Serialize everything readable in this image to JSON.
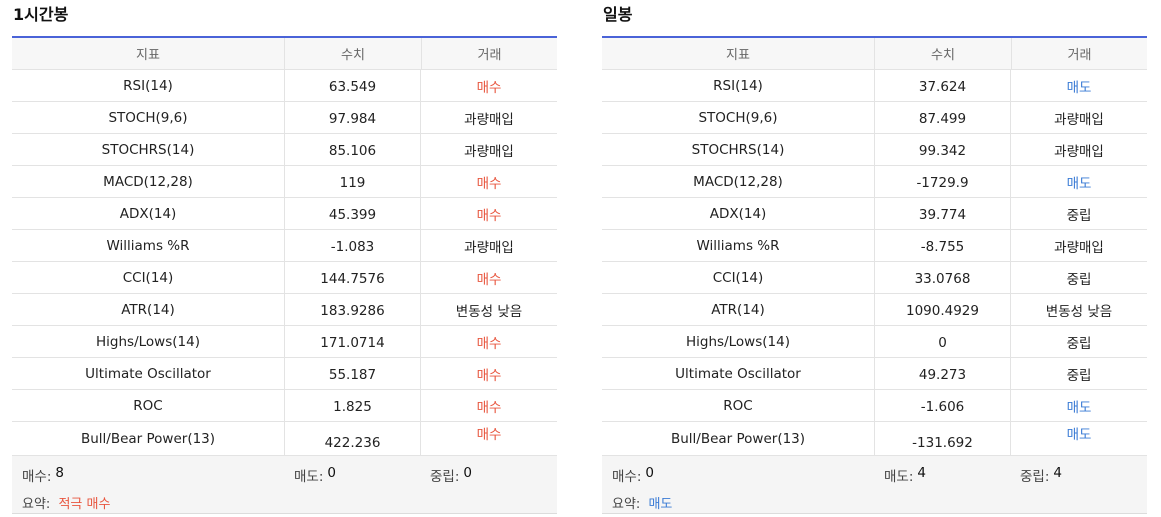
{
  "headers": {
    "indicator": "지표",
    "value": "수치",
    "action": "거래"
  },
  "panels": [
    {
      "title": "1시간봉",
      "rows": [
        {
          "name": "RSI(14)",
          "value": "63.549",
          "action": "매수",
          "type": "buy"
        },
        {
          "name": "STOCH(9,6)",
          "value": "97.984",
          "action": "과량매입",
          "type": "neutral"
        },
        {
          "name": "STOCHRS(14)",
          "value": "85.106",
          "action": "과량매입",
          "type": "neutral"
        },
        {
          "name": "MACD(12,28)",
          "value": "119",
          "action": "매수",
          "type": "buy"
        },
        {
          "name": "ADX(14)",
          "value": "45.399",
          "action": "매수",
          "type": "buy"
        },
        {
          "name": "Williams %R",
          "value": "-1.083",
          "action": "과량매입",
          "type": "neutral"
        },
        {
          "name": "CCI(14)",
          "value": "144.7576",
          "action": "매수",
          "type": "buy"
        },
        {
          "name": "ATR(14)",
          "value": "183.9286",
          "action": "변동성 낮음",
          "type": "neutral"
        },
        {
          "name": "Highs/Lows(14)",
          "value": "171.0714",
          "action": "매수",
          "type": "buy"
        },
        {
          "name": "Ultimate Oscillator",
          "value": "55.187",
          "action": "매수",
          "type": "buy"
        },
        {
          "name": "ROC",
          "value": "1.825",
          "action": "매수",
          "type": "buy"
        },
        {
          "name": "Bull/Bear Power(13)",
          "value": "422.236",
          "action": "매수",
          "type": "buy"
        }
      ],
      "summary": {
        "buy_label": "매수:",
        "buy_count": "8",
        "sell_label": "매도:",
        "sell_count": "0",
        "neutral_label": "중립:",
        "neutral_count": "0",
        "overall_label": "요약:",
        "overall_value": "적극 매수",
        "overall_type": "buy"
      }
    },
    {
      "title": "일봉",
      "rows": [
        {
          "name": "RSI(14)",
          "value": "37.624",
          "action": "매도",
          "type": "sell"
        },
        {
          "name": "STOCH(9,6)",
          "value": "87.499",
          "action": "과량매입",
          "type": "neutral"
        },
        {
          "name": "STOCHRS(14)",
          "value": "99.342",
          "action": "과량매입",
          "type": "neutral"
        },
        {
          "name": "MACD(12,28)",
          "value": "-1729.9",
          "action": "매도",
          "type": "sell"
        },
        {
          "name": "ADX(14)",
          "value": "39.774",
          "action": "중립",
          "type": "neutral"
        },
        {
          "name": "Williams %R",
          "value": "-8.755",
          "action": "과량매입",
          "type": "neutral"
        },
        {
          "name": "CCI(14)",
          "value": "33.0768",
          "action": "중립",
          "type": "neutral"
        },
        {
          "name": "ATR(14)",
          "value": "1090.4929",
          "action": "변동성 낮음",
          "type": "neutral"
        },
        {
          "name": "Highs/Lows(14)",
          "value": "0",
          "action": "중립",
          "type": "neutral"
        },
        {
          "name": "Ultimate Oscillator",
          "value": "49.273",
          "action": "중립",
          "type": "neutral"
        },
        {
          "name": "ROC",
          "value": "-1.606",
          "action": "매도",
          "type": "sell"
        },
        {
          "name": "Bull/Bear Power(13)",
          "value": "-131.692",
          "action": "매도",
          "type": "sell"
        }
      ],
      "summary": {
        "buy_label": "매수:",
        "buy_count": "0",
        "sell_label": "매도:",
        "sell_count": "4",
        "neutral_label": "중립:",
        "neutral_count": "4",
        "overall_label": "요약:",
        "overall_value": "매도",
        "overall_type": "sell"
      }
    }
  ],
  "colors": {
    "buy": "#e8563f",
    "sell": "#3a7bd5",
    "accent": "#4a63d8"
  }
}
